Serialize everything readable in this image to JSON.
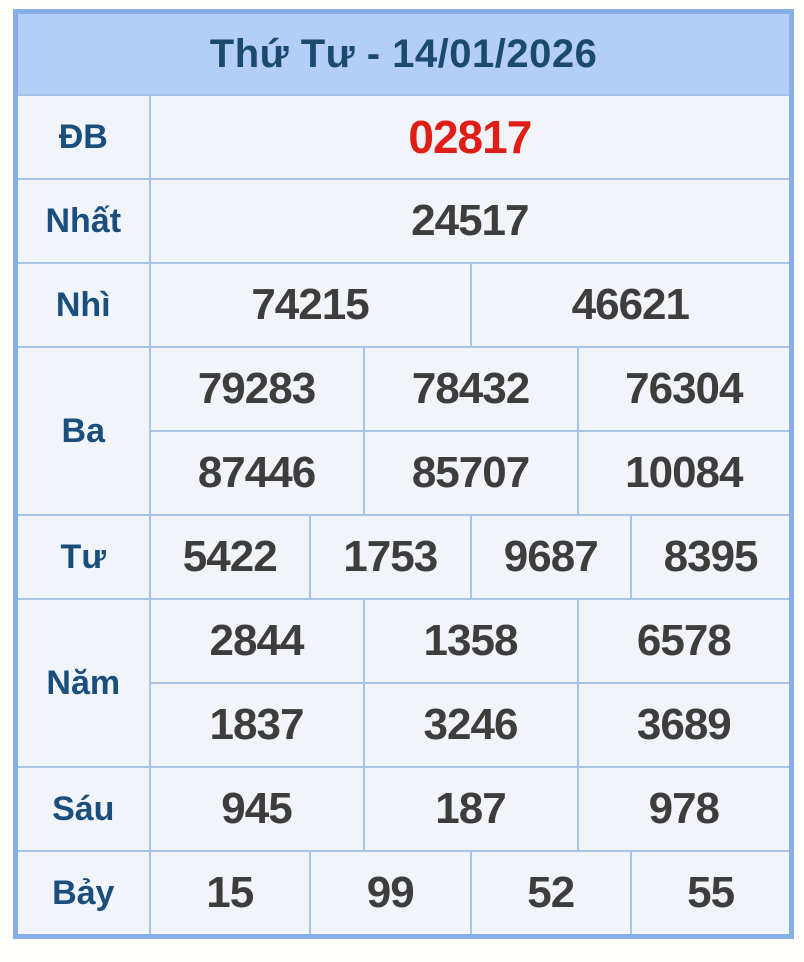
{
  "header": {
    "title": "Thứ Tư - 14/01/2026"
  },
  "colors": {
    "header_bg": "#b4cef8",
    "cell_bg": "#f1f4f9",
    "border_inner": "#a6c4e8",
    "border_outer": "#85afe6",
    "label_blue": "#1a4e7c",
    "number_gray": "#3d3d3d",
    "special_red": "#e01d16"
  },
  "prizes": {
    "db": {
      "label": "ĐB",
      "values": [
        "02817"
      ]
    },
    "nhat": {
      "label": "Nhất",
      "values": [
        "24517"
      ]
    },
    "nhi": {
      "label": "Nhì",
      "values": [
        "74215",
        "46621"
      ]
    },
    "ba": {
      "label": "Ba",
      "values": [
        "79283",
        "78432",
        "76304",
        "87446",
        "85707",
        "10084"
      ]
    },
    "tu": {
      "label": "Tư",
      "values": [
        "5422",
        "1753",
        "9687",
        "8395"
      ]
    },
    "nam": {
      "label": "Năm",
      "values": [
        "2844",
        "1358",
        "6578",
        "1837",
        "3246",
        "3689"
      ]
    },
    "sau": {
      "label": "Sáu",
      "values": [
        "945",
        "187",
        "978"
      ]
    },
    "bay": {
      "label": "Bảy",
      "values": [
        "15",
        "99",
        "52",
        "55"
      ]
    }
  }
}
